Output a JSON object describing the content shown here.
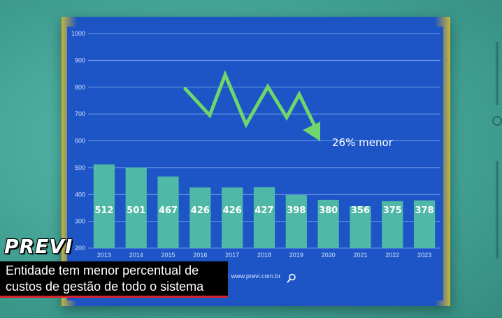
{
  "chart_data": {
    "type": "bar",
    "categories": [
      "2013",
      "2014",
      "2015",
      "2016",
      "2017",
      "2018",
      "2019",
      "2020",
      "2021",
      "2022",
      "2023"
    ],
    "values": [
      512,
      501,
      467,
      426,
      426,
      427,
      398,
      380,
      356,
      375,
      378
    ],
    "data_labels": [
      "512",
      "501",
      "467",
      "426",
      "426",
      "427",
      "398",
      "380",
      "356",
      "375",
      "378"
    ],
    "ylim": [
      200,
      1000
    ],
    "yticks": [
      200,
      300,
      400,
      500,
      600,
      700,
      800,
      900,
      1000
    ],
    "ytick_labels": [
      "200",
      "300",
      "400",
      "500",
      "600",
      "700",
      "800",
      "900",
      "1000"
    ],
    "grid": true,
    "annotation": "26% menor",
    "bar_color": "#4fb8a6",
    "background_color": "#1d55c6",
    "arrow_color": "#6ed66a"
  },
  "source_text": "te: www.previ.com.br",
  "brand": "PREVI",
  "headline": {
    "line1": "Entidade tem menor percentual de",
    "line2": "custos de gestão de todo o sistema"
  },
  "colors": {
    "page_background": "#4aab9c",
    "headline_background": "#000000",
    "headline_accent": "#d6232a"
  },
  "icons": {
    "source_search": "search-icon"
  }
}
